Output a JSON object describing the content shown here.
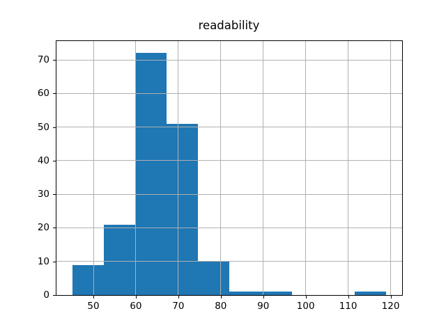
{
  "figure": {
    "title": "readability"
  },
  "chart_data": {
    "type": "bar",
    "subtype": "histogram",
    "title": "readability",
    "xlabel": "",
    "ylabel": "",
    "bin_edges": [
      45.0,
      52.4,
      59.8,
      67.2,
      74.6,
      82.0,
      89.4,
      96.8,
      104.2,
      111.6,
      119.0
    ],
    "values": [
      9,
      21,
      72,
      51,
      10,
      1,
      1,
      0,
      0,
      1
    ],
    "xlim": [
      41.3,
      122.7
    ],
    "ylim": [
      0,
      75.6
    ],
    "xticks": [
      50,
      60,
      70,
      80,
      90,
      100,
      110,
      120
    ],
    "yticks": [
      0,
      10,
      20,
      30,
      40,
      50,
      60,
      70
    ],
    "grid": true,
    "legend": null,
    "bar_color": "#1f77b4",
    "grid_color": "#b0b0b0",
    "axis_color": "#000000",
    "background_color": "#ffffff"
  }
}
